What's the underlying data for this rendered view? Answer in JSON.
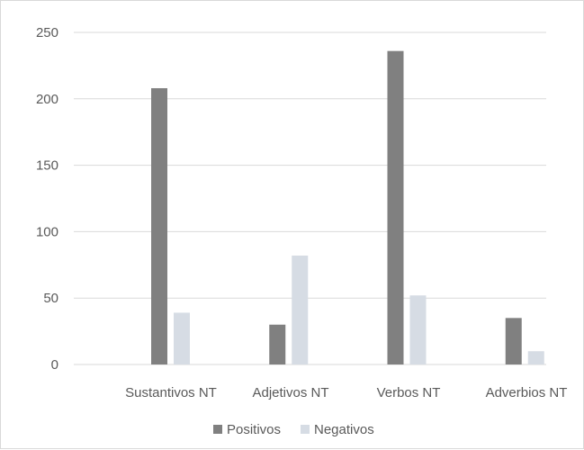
{
  "chart_data": {
    "type": "bar",
    "categories": [
      "Sustantivos NT",
      "Adjetivos NT",
      "Verbos NT",
      "Adverbios NT"
    ],
    "series": [
      {
        "name": "Positivos",
        "values": [
          208,
          30,
          236,
          35
        ],
        "color": "#808080"
      },
      {
        "name": "Negativos",
        "values": [
          39,
          82,
          52,
          10
        ],
        "color": "#d6dce4"
      }
    ],
    "yticks": [
      0,
      50,
      100,
      150,
      200,
      250
    ],
    "ylim": [
      0,
      250
    ],
    "grid": true,
    "legend_position": "bottom",
    "gridline_color": "#d9d9d9"
  }
}
